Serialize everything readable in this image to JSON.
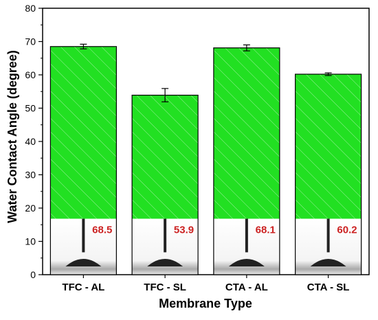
{
  "chart_data": {
    "type": "bar",
    "xlabel": "Membrane Type",
    "ylabel": "Water Contact Angle (degree)",
    "categories": [
      "TFC - AL",
      "TFC - SL",
      "CTA - AL",
      "CTA - SL"
    ],
    "values": [
      68.5,
      53.9,
      68.1,
      60.2
    ],
    "errors": [
      0.7,
      2.0,
      0.9,
      0.4
    ],
    "inset_labels": [
      "68.5",
      "53.9",
      "68.1",
      "60.2"
    ],
    "ylim": [
      0,
      80
    ],
    "yticks": [
      "0",
      "10",
      "20",
      "30",
      "40",
      "50",
      "60",
      "70",
      "80"
    ],
    "grid": false,
    "bar_color": "#22e022",
    "label_color": "#cc2222"
  }
}
